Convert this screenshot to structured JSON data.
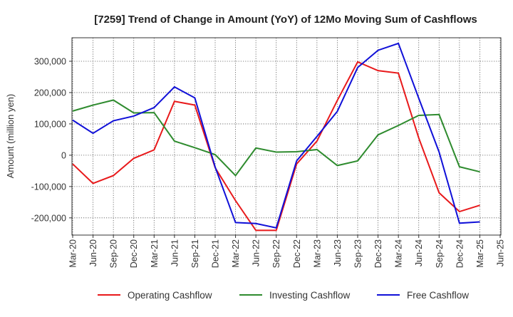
{
  "chart_data": {
    "type": "line",
    "title": "[7259]  Trend of Change in Amount (YoY) of 12Mo Moving Sum of Cashflows",
    "xlabel": "",
    "ylabel": "Amount (million yen)",
    "ylim": [
      -255000,
      375000
    ],
    "yticks": [
      -200000,
      -100000,
      0,
      100000,
      200000,
      300000
    ],
    "ytick_labels": [
      "-200,000",
      "-100,000",
      "0",
      "100,000",
      "200,000",
      "300,000"
    ],
    "grid": true,
    "legend_position": "bottom",
    "categories": [
      "Mar-20",
      "Jun-20",
      "Sep-20",
      "Dec-20",
      "Mar-21",
      "Jun-21",
      "Sep-21",
      "Dec-21",
      "Mar-22",
      "Jun-22",
      "Sep-22",
      "Dec-22",
      "Mar-23",
      "Jun-23",
      "Sep-23",
      "Dec-23",
      "Mar-24",
      "Jun-24",
      "Sep-24",
      "Dec-24",
      "Mar-25",
      "Jun-25"
    ],
    "series": [
      {
        "name": "Operating Cashflow",
        "color": "#e8191b",
        "values": [
          -28000,
          -90000,
          -65000,
          -10000,
          17000,
          172000,
          160000,
          -40000,
          -145000,
          -240000,
          -240000,
          -28000,
          45000,
          175000,
          298000,
          270000,
          262000,
          55000,
          -120000,
          -180000,
          -160000,
          null
        ]
      },
      {
        "name": "Investing Cashflow",
        "color": "#2e8b2e",
        "values": [
          141000,
          160000,
          176000,
          135000,
          136000,
          45000,
          24000,
          2000,
          -65000,
          23000,
          10000,
          11000,
          18000,
          -33000,
          -18000,
          65000,
          95000,
          127000,
          130000,
          -37000,
          -53000,
          null
        ]
      },
      {
        "name": "Free Cashflow",
        "color": "#1010d8",
        "values": [
          112000,
          70000,
          110000,
          125000,
          152000,
          218000,
          183000,
          -38000,
          -215000,
          -218000,
          -232000,
          -18000,
          60000,
          140000,
          280000,
          335000,
          357000,
          182000,
          10000,
          -217000,
          -213000,
          null
        ]
      }
    ]
  }
}
